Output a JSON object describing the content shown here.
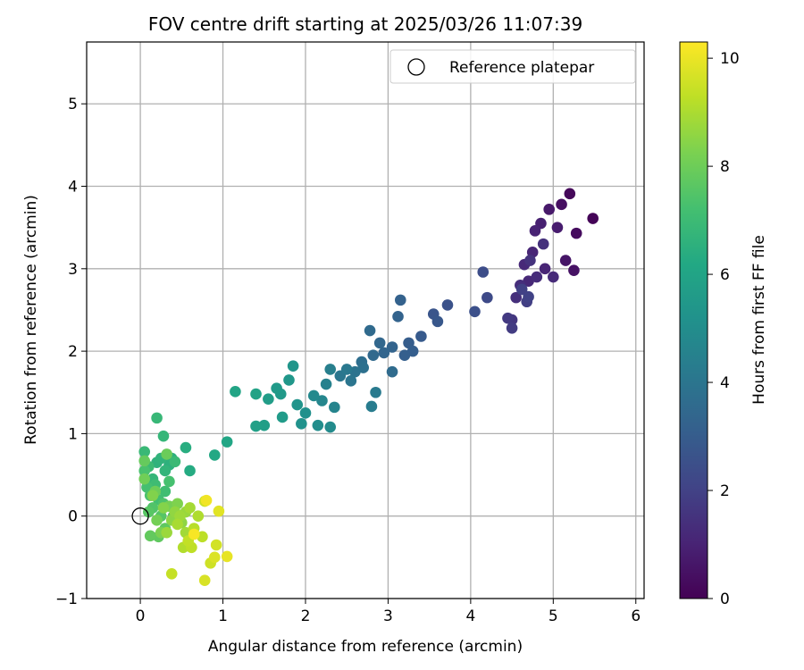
{
  "chart_data": {
    "type": "scatter",
    "title": "FOV centre drift starting at 2025/03/26 11:07:39",
    "xlabel": "Angular distance from reference (arcmin)",
    "ylabel": "Rotation from reference (arcmin)",
    "xlim": [
      -0.65,
      6.1
    ],
    "ylim": [
      -1.0,
      5.75
    ],
    "xticks": [
      "0",
      "1",
      "2",
      "3",
      "4",
      "5",
      "6"
    ],
    "yticks": [
      "−1",
      "0",
      "1",
      "2",
      "3",
      "4",
      "5"
    ],
    "grid": true,
    "legend_placement": "top-right",
    "colormap": "viridis",
    "colorbar": {
      "label": "Hours from first FF file",
      "range": [
        0,
        10.3
      ],
      "ticks": [
        "0",
        "2",
        "4",
        "6",
        "8",
        "10"
      ]
    },
    "reference": {
      "name": "Reference platepar",
      "x": 0,
      "y": 0
    },
    "series": [
      {
        "points": [
          [
            5.48,
            3.61,
            0.1
          ],
          [
            5.2,
            3.91,
            0.2
          ],
          [
            5.28,
            3.43,
            0.3
          ],
          [
            5.1,
            3.78,
            0.4
          ],
          [
            5.25,
            2.98,
            0.5
          ],
          [
            5.15,
            3.1,
            0.6
          ],
          [
            4.95,
            3.72,
            0.7
          ],
          [
            5.05,
            3.5,
            0.8
          ],
          [
            4.85,
            3.55,
            0.9
          ],
          [
            4.78,
            3.46,
            1.0
          ],
          [
            4.9,
            3.0,
            1.05
          ],
          [
            4.75,
            3.2,
            1.1
          ],
          [
            4.7,
            2.85,
            1.15
          ],
          [
            4.65,
            3.05,
            1.2
          ],
          [
            5.0,
            2.9,
            1.25
          ],
          [
            4.8,
            2.9,
            1.3
          ],
          [
            4.6,
            2.8,
            1.35
          ],
          [
            4.55,
            2.65,
            1.4
          ],
          [
            4.88,
            3.3,
            1.45
          ],
          [
            4.72,
            3.1,
            1.5
          ],
          [
            4.5,
            2.38,
            1.6
          ],
          [
            4.45,
            2.4,
            1.7
          ],
          [
            4.5,
            2.28,
            1.8
          ],
          [
            4.68,
            2.6,
            1.9
          ],
          [
            4.62,
            2.75,
            1.95
          ],
          [
            4.7,
            2.66,
            2.0
          ],
          [
            4.2,
            2.65,
            2.3
          ],
          [
            4.15,
            2.96,
            2.4
          ],
          [
            4.05,
            2.48,
            2.5
          ],
          [
            3.72,
            2.56,
            2.6
          ],
          [
            3.55,
            2.45,
            2.7
          ],
          [
            3.6,
            2.36,
            2.8
          ],
          [
            3.4,
            2.18,
            2.9
          ],
          [
            3.25,
            2.1,
            3.0
          ],
          [
            3.3,
            2.0,
            3.05
          ],
          [
            3.2,
            1.95,
            3.1
          ],
          [
            3.15,
            2.62,
            3.2
          ],
          [
            3.12,
            2.42,
            3.25
          ],
          [
            3.05,
            2.05,
            3.3
          ],
          [
            2.95,
            1.98,
            3.35
          ],
          [
            2.9,
            2.1,
            3.4
          ],
          [
            2.82,
            1.95,
            3.5
          ],
          [
            2.78,
            2.25,
            3.55
          ],
          [
            3.05,
            1.75,
            3.6
          ],
          [
            2.68,
            1.87,
            3.7
          ],
          [
            2.7,
            1.8,
            3.8
          ],
          [
            2.6,
            1.75,
            3.9
          ],
          [
            2.55,
            1.64,
            4.0
          ],
          [
            2.42,
            1.7,
            4.05
          ],
          [
            2.5,
            1.78,
            4.1
          ],
          [
            2.85,
            1.5,
            4.2
          ],
          [
            2.8,
            1.33,
            4.3
          ],
          [
            2.3,
            1.78,
            4.4
          ],
          [
            2.25,
            1.6,
            4.5
          ],
          [
            2.35,
            1.32,
            4.6
          ],
          [
            2.2,
            1.4,
            4.7
          ],
          [
            2.1,
            1.46,
            4.8
          ],
          [
            2.3,
            1.08,
            4.9
          ],
          [
            2.15,
            1.1,
            5.0
          ],
          [
            2.0,
            1.25,
            5.1
          ],
          [
            1.95,
            1.12,
            5.2
          ],
          [
            1.9,
            1.35,
            5.3
          ],
          [
            1.85,
            1.82,
            5.35
          ],
          [
            1.8,
            1.65,
            5.4
          ],
          [
            1.7,
            1.48,
            5.5
          ],
          [
            1.65,
            1.55,
            5.55
          ],
          [
            1.72,
            1.2,
            5.6
          ],
          [
            1.55,
            1.42,
            5.7
          ],
          [
            1.5,
            1.1,
            5.75
          ],
          [
            1.4,
            1.09,
            5.8
          ],
          [
            1.4,
            1.48,
            5.9
          ],
          [
            1.15,
            1.51,
            6.0
          ],
          [
            1.05,
            0.9,
            6.1
          ],
          [
            0.9,
            0.74,
            6.2
          ],
          [
            0.6,
            0.55,
            6.3
          ],
          [
            0.55,
            0.83,
            6.4
          ],
          [
            0.38,
            0.7,
            6.5
          ],
          [
            0.35,
            0.62,
            6.55
          ],
          [
            0.2,
            0.65,
            6.6
          ],
          [
            0.25,
            0.7,
            6.65
          ],
          [
            0.3,
            0.55,
            6.7
          ],
          [
            0.15,
            0.45,
            6.75
          ],
          [
            0.28,
            0.97,
            6.8
          ],
          [
            0.2,
            1.19,
            6.85
          ],
          [
            0.05,
            0.78,
            6.9
          ],
          [
            0.42,
            0.66,
            6.95
          ],
          [
            0.1,
            0.6,
            7.0
          ],
          [
            0.18,
            0.38,
            7.05
          ],
          [
            0.3,
            0.3,
            7.1
          ],
          [
            0.22,
            0.2,
            7.15
          ],
          [
            0.08,
            0.35,
            7.2
          ],
          [
            0.35,
            0.42,
            7.25
          ],
          [
            0.05,
            0.55,
            7.3
          ],
          [
            0.12,
            0.25,
            7.35
          ],
          [
            0.28,
            0.15,
            7.4
          ],
          [
            0.15,
            0.1,
            7.45
          ],
          [
            0.4,
            0.0,
            7.5
          ],
          [
            0.25,
            0.0,
            7.55
          ],
          [
            0.1,
            0.05,
            7.6
          ],
          [
            0.3,
            -0.15,
            7.7
          ],
          [
            0.22,
            -0.25,
            7.75
          ],
          [
            0.12,
            -0.24,
            7.8
          ],
          [
            0.05,
            0.67,
            7.85
          ],
          [
            0.32,
            0.75,
            7.95
          ],
          [
            0.18,
            0.3,
            8.0
          ],
          [
            0.05,
            0.45,
            8.05
          ],
          [
            0.2,
            -0.05,
            8.1
          ],
          [
            0.35,
            0.12,
            8.15
          ],
          [
            0.25,
            -0.2,
            8.25
          ],
          [
            0.45,
            0.15,
            8.3
          ],
          [
            0.15,
            0.25,
            8.35
          ],
          [
            0.28,
            0.1,
            8.4
          ],
          [
            0.38,
            -0.05,
            8.5
          ],
          [
            0.5,
            -0.08,
            8.55
          ],
          [
            0.42,
            0.05,
            8.6
          ],
          [
            0.55,
            0.05,
            8.7
          ],
          [
            0.32,
            -0.2,
            8.75
          ],
          [
            0.48,
            0.0,
            8.8
          ],
          [
            0.55,
            -0.2,
            8.85
          ],
          [
            0.6,
            0.1,
            8.9
          ],
          [
            0.45,
            -0.1,
            8.95
          ],
          [
            0.7,
            0.0,
            9.05
          ],
          [
            0.52,
            -0.38,
            9.1
          ],
          [
            0.65,
            -0.15,
            9.2
          ],
          [
            0.75,
            -0.25,
            9.25
          ],
          [
            0.62,
            -0.38,
            9.3
          ],
          [
            0.58,
            -0.3,
            9.35
          ],
          [
            0.38,
            -0.7,
            9.4
          ],
          [
            0.78,
            0.18,
            9.5
          ],
          [
            0.85,
            -0.57,
            9.55
          ],
          [
            0.92,
            -0.35,
            9.6
          ],
          [
            0.78,
            -0.78,
            9.7
          ],
          [
            0.9,
            -0.5,
            9.75
          ],
          [
            0.95,
            0.06,
            9.85
          ],
          [
            1.05,
            -0.49,
            9.95
          ],
          [
            0.8,
            0.19,
            10.1
          ],
          [
            0.65,
            -0.22,
            10.2
          ]
        ]
      }
    ]
  }
}
